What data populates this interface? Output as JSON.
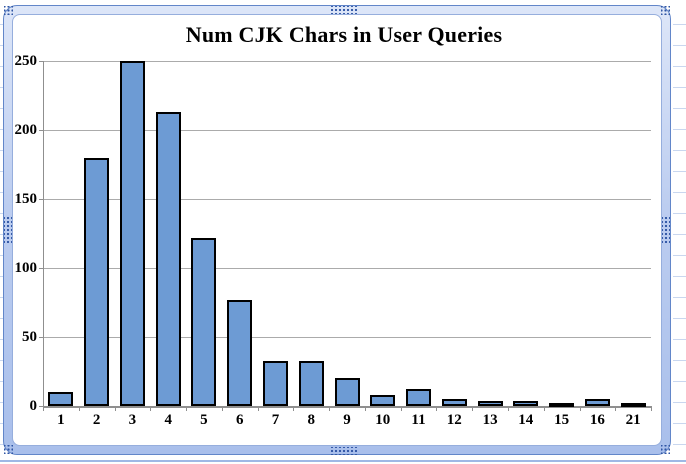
{
  "chart_data": {
    "type": "bar",
    "title": "Num CJK Chars in User Queries",
    "categories": [
      "1",
      "2",
      "3",
      "4",
      "5",
      "6",
      "7",
      "8",
      "9",
      "10",
      "11",
      "12",
      "13",
      "14",
      "15",
      "16",
      "21"
    ],
    "values": [
      10,
      180,
      250,
      213,
      122,
      77,
      33,
      33,
      20,
      8,
      12,
      5,
      4,
      4,
      2,
      5,
      2
    ],
    "xlabel": "",
    "ylabel": "",
    "ylim": [
      0,
      250
    ],
    "yticks": [
      0,
      50,
      100,
      150,
      200,
      250
    ],
    "grid": true,
    "legend": false,
    "bar_fill": "#6d9bd4",
    "bar_border": "#000000",
    "gridline_color": "#ababab",
    "axis_color": "#8f8f8f",
    "title_color": "#000000"
  },
  "frame": {
    "border_color": "#6286c9",
    "band_color": "#bccdf0",
    "handle_color": "#2f55a4",
    "selected": "true"
  },
  "sheet": {
    "gridline_color": "#c9d7ef"
  }
}
